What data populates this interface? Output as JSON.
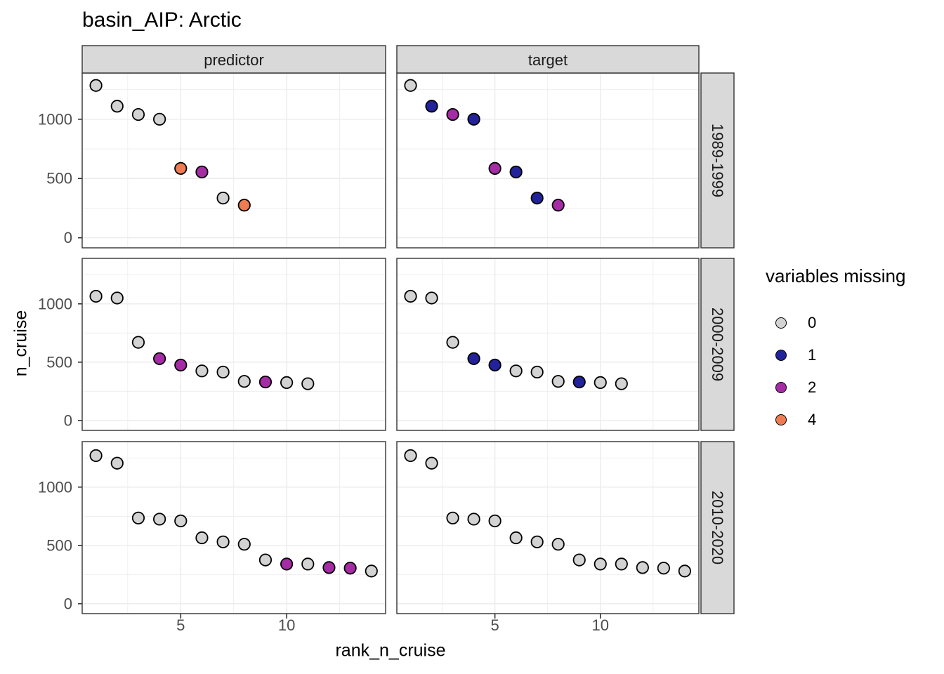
{
  "title": "basin_AIP: Arctic",
  "axes": {
    "x_title": "rank_n_cruise",
    "y_title": "n_cruise",
    "x_ticks": [
      "5",
      "10"
    ],
    "x_tick_values": [
      5,
      10
    ],
    "y_ticks": [
      "0",
      "500",
      "1000"
    ],
    "y_tick_values": [
      0,
      500,
      1000
    ]
  },
  "legend": {
    "title": "variables missing",
    "entries": [
      {
        "label": "0",
        "color": "#D3D3D3"
      },
      {
        "label": "1",
        "color": "#22229B"
      },
      {
        "label": "2",
        "#comment": "magenta",
        "color": "#A62CA6"
      },
      {
        "label": "4",
        "color": "#EE7B51"
      }
    ]
  },
  "chart_data": {
    "type": "scatter",
    "title": "basin_AIP: Arctic",
    "xlabel": "rank_n_cruise",
    "ylabel": "n_cruise",
    "xlim": [
      0.35,
      14.67
    ],
    "ylim": [
      -85,
      1390
    ],
    "x_major_breaks": [
      5,
      10
    ],
    "x_minor_breaks": [
      2.5,
      7.5,
      12.5
    ],
    "y_major_breaks": [
      0,
      500,
      1000
    ],
    "y_minor_breaks": [
      250,
      750,
      1250
    ],
    "grid": true,
    "legend_position": "right",
    "color_scale": {
      "0": "#D3D3D3",
      "1": "#22229B",
      "2": "#A62CA6",
      "4": "#EE7B51"
    },
    "point_stroke": "#000000",
    "facet_cols": [
      {
        "label": "predictor",
        "key": "missing_predictor"
      },
      {
        "label": "target",
        "key": "missing_target"
      }
    ],
    "facet_rows": [
      {
        "label": "1989-1999",
        "ranks": [
          1,
          2,
          3,
          4,
          5,
          6,
          7,
          8
        ],
        "n_cruise": [
          1285,
          1110,
          1040,
          1000,
          585,
          555,
          335,
          275
        ],
        "missing_predictor": [
          0,
          0,
          0,
          0,
          4,
          2,
          0,
          4
        ],
        "missing_target": [
          0,
          1,
          2,
          1,
          2,
          1,
          1,
          2
        ]
      },
      {
        "label": "2000-2009",
        "ranks": [
          1,
          2,
          3,
          4,
          5,
          6,
          7,
          8,
          9,
          10,
          11
        ],
        "n_cruise": [
          1065,
          1050,
          670,
          530,
          475,
          425,
          415,
          335,
          330,
          325,
          315
        ],
        "missing_predictor": [
          0,
          0,
          0,
          2,
          2,
          0,
          0,
          0,
          2,
          0,
          0
        ],
        "missing_target": [
          0,
          0,
          0,
          1,
          1,
          0,
          0,
          0,
          1,
          0,
          0
        ]
      },
      {
        "label": "2010-2020",
        "ranks": [
          1,
          2,
          3,
          4,
          5,
          6,
          7,
          8,
          9,
          10,
          11,
          12,
          13,
          14
        ],
        "n_cruise": [
          1270,
          1205,
          735,
          725,
          710,
          565,
          530,
          510,
          375,
          340,
          340,
          310,
          305,
          280
        ],
        "missing_predictor": [
          0,
          0,
          0,
          0,
          0,
          0,
          0,
          0,
          0,
          2,
          0,
          2,
          2,
          0
        ],
        "missing_target": [
          0,
          0,
          0,
          0,
          0,
          0,
          0,
          0,
          0,
          0,
          0,
          0,
          0,
          0
        ]
      }
    ],
    "style_colors": {
      "gridline": "#EBEBEB",
      "panel_border": "#333333",
      "strip_fill": "#D9D9D9",
      "strip_border": "#333333",
      "strip_text": "#1A1A1A",
      "tick_mark": "#333333",
      "tick_label": "#4D4D4D"
    }
  }
}
